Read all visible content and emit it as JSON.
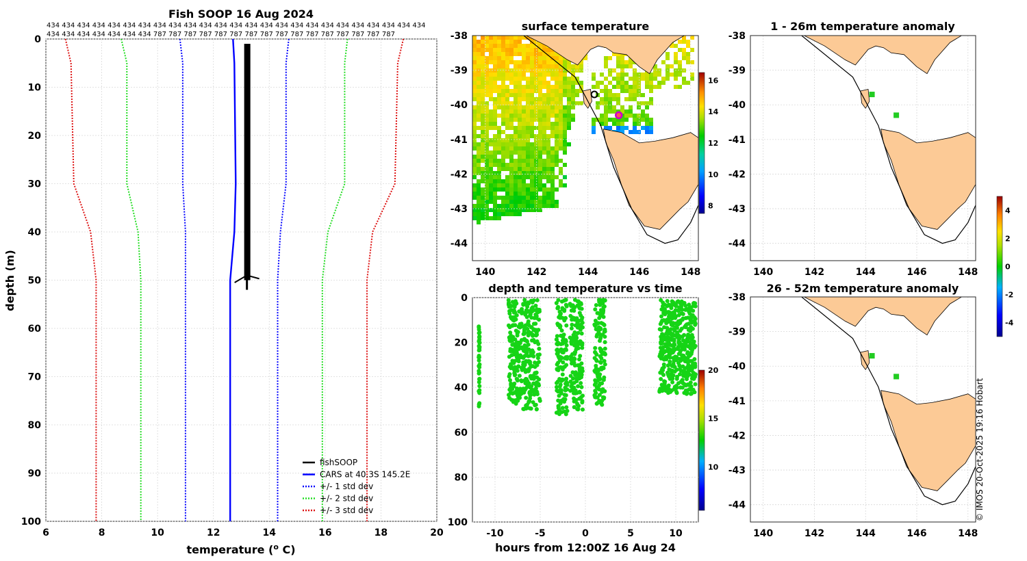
{
  "chart_data": [
    {
      "type": "line",
      "title": "Fish SOOP 16 Aug 2024",
      "xlabel": "temperature (",
      "xlabel_sup": "o",
      "xlabel_end": " C)",
      "ylabel": "depth (m)",
      "xlim": [
        6,
        20
      ],
      "ylim": [
        100,
        0
      ],
      "xticks": [
        "6",
        "8",
        "10",
        "12",
        "14",
        "16",
        "18",
        "20"
      ],
      "yticks": [
        "0",
        "10",
        "20",
        "30",
        "40",
        "50",
        "60",
        "70",
        "80",
        "90",
        "100"
      ],
      "id_row1": "434 434 434 434 434 434 434 434 434 434 434 434 434 434 434 434 434 434 434 434 434 434 434 434 434",
      "id_row2": "434 434 434 434 434 434 434 787 787 787 787 787 787 787 787 787 787 787 787 787 787 787 787",
      "legend": [
        "fishSOOP",
        "CARS at 40.3S 145.2E",
        "+/- 1 std dev",
        "+/- 2 std dev",
        "+/- 3 std dev"
      ],
      "series": [
        {
          "name": "CARS",
          "depth": [
            0,
            5,
            30,
            40,
            50,
            100
          ],
          "temp": [
            12.7,
            12.75,
            12.8,
            12.75,
            12.6,
            12.6
          ]
        },
        {
          "name": "-1 std",
          "depth": [
            0,
            5,
            30,
            40,
            50,
            100
          ],
          "temp": [
            10.8,
            10.9,
            10.9,
            11.0,
            11.0,
            11.0
          ]
        },
        {
          "name": "+1 std",
          "depth": [
            0,
            5,
            30,
            40,
            50,
            100
          ],
          "temp": [
            14.7,
            14.6,
            14.6,
            14.4,
            14.3,
            14.3
          ]
        },
        {
          "name": "-2 std",
          "depth": [
            0,
            5,
            30,
            40,
            50,
            100
          ],
          "temp": [
            8.7,
            8.9,
            8.9,
            9.3,
            9.4,
            9.4
          ]
        },
        {
          "name": "+2 std",
          "depth": [
            0,
            5,
            30,
            40,
            50,
            100
          ],
          "temp": [
            16.8,
            16.7,
            16.7,
            16.1,
            15.9,
            15.9
          ]
        },
        {
          "name": "-3 std",
          "depth": [
            0,
            5,
            30,
            40,
            50,
            100
          ],
          "temp": [
            6.7,
            6.9,
            7.0,
            7.6,
            7.8,
            7.8
          ]
        },
        {
          "name": "+3 std",
          "depth": [
            0,
            5,
            30,
            40,
            50,
            100
          ],
          "temp": [
            18.8,
            18.6,
            18.5,
            17.7,
            17.5,
            17.5
          ]
        },
        {
          "name": "fishSOOP",
          "depth": [
            1,
            50,
            52
          ],
          "temp": [
            13.2,
            13.2,
            13.2
          ]
        }
      ]
    },
    {
      "type": "heatmap",
      "title": "surface temperature",
      "xlim": [
        139.5,
        148.3
      ],
      "ylim": [
        -44.5,
        -38
      ],
      "xticks": [
        "140",
        "142",
        "144",
        "146",
        "148"
      ],
      "yticks": [
        "-38",
        "-39",
        "-40",
        "-41",
        "-42",
        "-43",
        "-44"
      ],
      "colorbar_ticks": [
        "8",
        "10",
        "12",
        "14",
        "16"
      ],
      "colorbar_range": [
        7.5,
        16.5
      ]
    },
    {
      "type": "scatter",
      "title": "depth and temperature vs time",
      "xlabel": "hours from 12:00Z 16 Aug 24",
      "xlim": [
        -12.5,
        12.5
      ],
      "ylim": [
        100,
        0
      ],
      "xticks": [
        "-10",
        "-5",
        "0",
        "5",
        "10"
      ],
      "yticks": [
        "0",
        "20",
        "40",
        "60",
        "80",
        "100"
      ],
      "colorbar_ticks": [
        "10",
        "15",
        "20"
      ],
      "colorbar_range": [
        5.5,
        20
      ],
      "clusters": [
        {
          "t0": -11.8,
          "t1": -11.7,
          "d0": 12,
          "d1": 49
        },
        {
          "t0": -8.5,
          "t1": -7.0,
          "d0": 1,
          "d1": 48
        },
        {
          "t0": -6.9,
          "t1": -5.0,
          "d0": 1,
          "d1": 50
        },
        {
          "t0": -3.2,
          "t1": -2.0,
          "d0": 1,
          "d1": 52
        },
        {
          "t0": -1.7,
          "t1": -0.3,
          "d0": 1,
          "d1": 50
        },
        {
          "t0": 1.0,
          "t1": 2.2,
          "d0": 1,
          "d1": 48
        },
        {
          "t0": 8.2,
          "t1": 12.2,
          "d0": 1,
          "d1": 43
        }
      ]
    },
    {
      "type": "map",
      "title": "1 - 26m temperature anomaly",
      "xticks": [
        "140",
        "142",
        "144",
        "146",
        "148"
      ],
      "yticks": [
        "-38",
        "-39",
        "-40",
        "-41",
        "-42",
        "-43",
        "-44"
      ],
      "colorbar_ticks": [
        "-4",
        "-2",
        "0",
        "2",
        "4"
      ],
      "colorbar_range": [
        -5,
        5
      ]
    },
    {
      "type": "map",
      "title": "26 - 52m temperature anomaly",
      "xticks": [
        "140",
        "142",
        "144",
        "146",
        "148"
      ],
      "yticks": [
        "-38",
        "-39",
        "-40",
        "-41",
        "-42",
        "-43",
        "-44"
      ]
    }
  ],
  "credit": "© IMOS 20-Oct-2025 19:16 Hobart"
}
